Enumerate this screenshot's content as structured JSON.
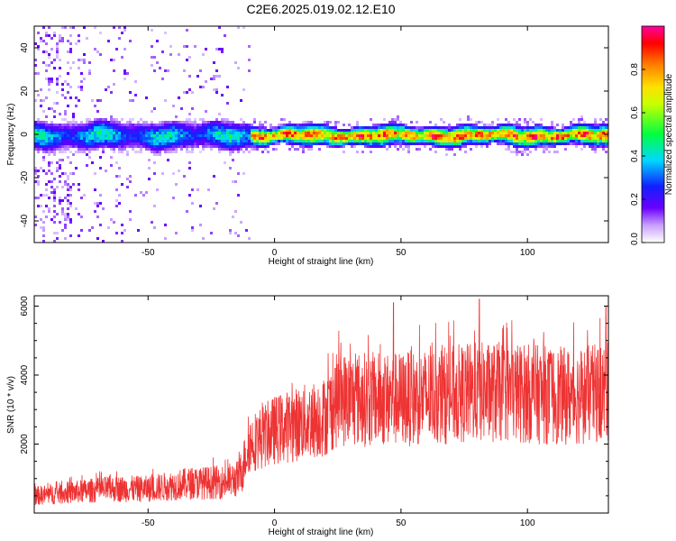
{
  "figure": {
    "title": "C2E6.2025.019.02.12.E10"
  },
  "chart_data": [
    {
      "type": "heatmap",
      "xlabel": "Height of straight line (km)",
      "ylabel": "Frequency (Hz)",
      "xlim": [
        -95,
        132
      ],
      "ylim": [
        -50,
        50
      ],
      "xticks": [
        -50,
        0,
        50,
        100
      ],
      "yticks": [
        -40,
        -20,
        0,
        20,
        40
      ],
      "colorbar": {
        "label": "Normalized spectral amplitude",
        "range": [
          0,
          1
        ],
        "ticks": [
          0.0,
          0.2,
          0.4,
          0.6,
          0.8
        ],
        "tick_labels": [
          "0.0",
          "0.2",
          "0.4",
          "0.6",
          "0.8"
        ],
        "colormap": "rainbow (purple→blue→cyan→green→yellow→orange→red→magenta)"
      },
      "description_of_data": {
        "band_center_hz": 0,
        "band_halfwidth_hz_at_low_height": 8,
        "band_halfwidth_hz_at_high_height": 4,
        "noise_spread_region_km": [
          -95,
          -10
        ]
      }
    },
    {
      "type": "line",
      "xlabel": "Height of straight line (km)",
      "ylabel": "SNR (10 * v/v)",
      "xlim": [
        -95,
        132
      ],
      "ylim": [
        0,
        6300
      ],
      "xticks": [
        -50,
        0,
        50,
        100
      ],
      "yticks": [
        2000,
        4000,
        6000
      ],
      "color": "#ee3333",
      "x": [
        -95,
        -80,
        -65,
        -50,
        -35,
        -20,
        -14,
        -10,
        0,
        10,
        20,
        25,
        35,
        50,
        65,
        80,
        95,
        110,
        120,
        132
      ],
      "y": [
        500,
        600,
        700,
        700,
        850,
        900,
        1000,
        2000,
        2400,
        2600,
        2800,
        3300,
        3300,
        3300,
        3400,
        3500,
        3500,
        3400,
        3400,
        3500
      ],
      "peaks": [
        {
          "x": 47,
          "y": 6100
        },
        {
          "x": 81,
          "y": 6200
        },
        {
          "x": 131,
          "y": 6000
        }
      ]
    }
  ]
}
